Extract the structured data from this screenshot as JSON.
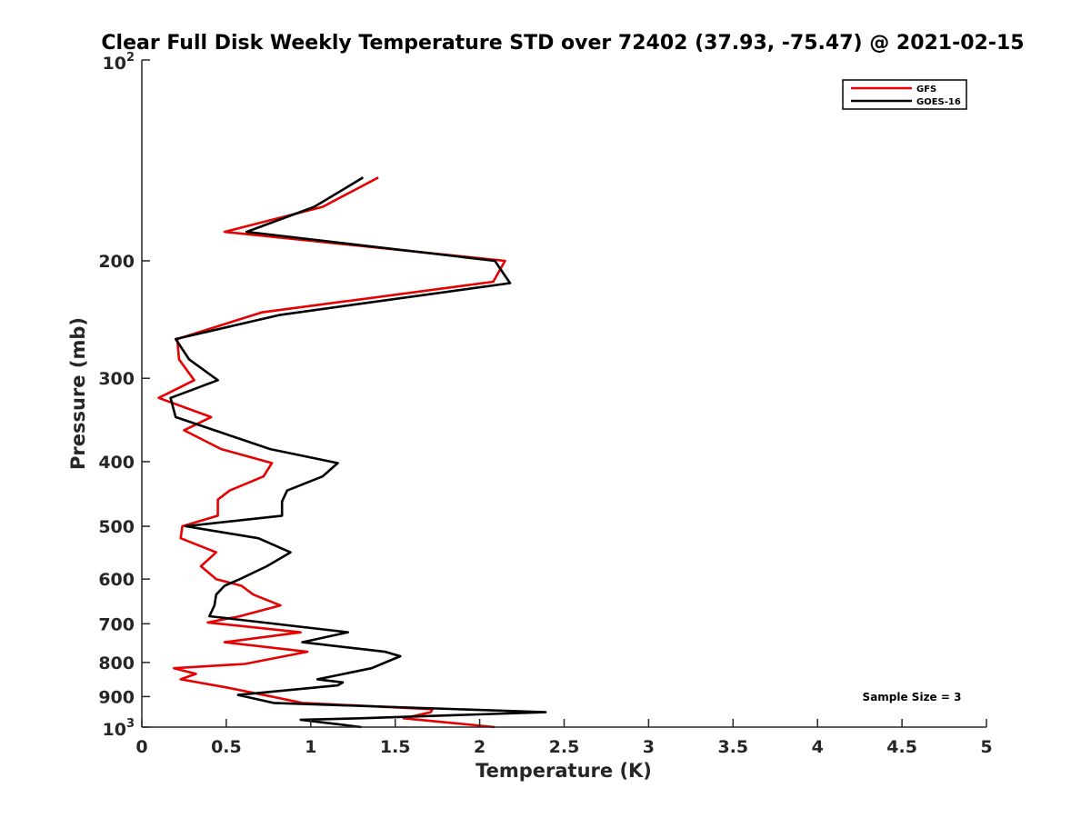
{
  "chart_data": {
    "type": "line",
    "title": "Clear Full Disk Weekly Temperature STD over 72402 (37.93, -75.47) @ 2021-02-15",
    "xlabel": "Temperature (K)",
    "ylabel": "Pressure (mb)",
    "xlim": [
      0,
      5
    ],
    "ylim": [
      100,
      1000
    ],
    "y_scale": "log",
    "y_reversed": true,
    "x_ticks": [
      "0",
      "0.5",
      "1",
      "1.5",
      "2",
      "2.5",
      "3",
      "3.5",
      "4",
      "4.5",
      "5"
    ],
    "x_tick_values": [
      0,
      0.5,
      1,
      1.5,
      2,
      2.5,
      3,
      3.5,
      4,
      4.5,
      5
    ],
    "y_ticks": [
      "200",
      "300",
      "400",
      "500",
      "600",
      "700",
      "800",
      "900"
    ],
    "y_tick_values": [
      200,
      300,
      400,
      500,
      600,
      700,
      800,
      900
    ],
    "y_top_label": {
      "base": "10",
      "exp": "2"
    },
    "y_bottom_label": {
      "base": "10",
      "exp": "3"
    },
    "grid": false,
    "legend_position": "top-right",
    "annotation": "Sample Size = 3",
    "series": [
      {
        "name": "GFS",
        "color": "#e60000",
        "points": [
          [
            1.4,
            150
          ],
          [
            1.07,
            166
          ],
          [
            0.49,
            181
          ],
          [
            2.15,
            200
          ],
          [
            2.08,
            215
          ],
          [
            0.71,
            239
          ],
          [
            0.21,
            262
          ],
          [
            0.22,
            281
          ],
          [
            0.31,
            302
          ],
          [
            0.1,
            321
          ],
          [
            0.41,
            343
          ],
          [
            0.25,
            359
          ],
          [
            0.47,
            383
          ],
          [
            0.77,
            402
          ],
          [
            0.72,
            421
          ],
          [
            0.52,
            442
          ],
          [
            0.45,
            456
          ],
          [
            0.45,
            482
          ],
          [
            0.24,
            500
          ],
          [
            0.23,
            521
          ],
          [
            0.44,
            547
          ],
          [
            0.35,
            574
          ],
          [
            0.44,
            600
          ],
          [
            0.59,
            614
          ],
          [
            0.66,
            633
          ],
          [
            0.82,
            657
          ],
          [
            0.58,
            682
          ],
          [
            0.39,
            697
          ],
          [
            0.94,
            721
          ],
          [
            0.49,
            746
          ],
          [
            0.98,
            771
          ],
          [
            0.61,
            804
          ],
          [
            0.19,
            816
          ],
          [
            0.32,
            832
          ],
          [
            0.23,
            848
          ],
          [
            0.5,
            872
          ],
          [
            0.75,
            898
          ],
          [
            0.95,
            920
          ],
          [
            1.72,
            940
          ],
          [
            1.71,
            950
          ],
          [
            1.55,
            970
          ],
          [
            2.09,
            1000
          ]
        ]
      },
      {
        "name": "GOES-16",
        "color": "#000000",
        "points": [
          [
            1.31,
            150
          ],
          [
            1.02,
            166
          ],
          [
            0.62,
            181
          ],
          [
            2.09,
            200
          ],
          [
            2.18,
            216
          ],
          [
            0.82,
            241
          ],
          [
            0.2,
            262
          ],
          [
            0.28,
            281
          ],
          [
            0.45,
            302
          ],
          [
            0.17,
            321
          ],
          [
            0.2,
            343
          ],
          [
            0.43,
            359
          ],
          [
            0.76,
            383
          ],
          [
            1.16,
            402
          ],
          [
            1.07,
            421
          ],
          [
            0.86,
            442
          ],
          [
            0.83,
            459
          ],
          [
            0.83,
            482
          ],
          [
            0.26,
            500
          ],
          [
            0.69,
            521
          ],
          [
            0.88,
            547
          ],
          [
            0.74,
            574
          ],
          [
            0.58,
            600
          ],
          [
            0.49,
            614
          ],
          [
            0.44,
            633
          ],
          [
            0.43,
            657
          ],
          [
            0.4,
            682
          ],
          [
            1.22,
            721
          ],
          [
            0.95,
            746
          ],
          [
            1.44,
            771
          ],
          [
            1.53,
            783
          ],
          [
            1.36,
            816
          ],
          [
            1.04,
            848
          ],
          [
            1.19,
            857
          ],
          [
            1.16,
            866
          ],
          [
            0.57,
            895
          ],
          [
            0.78,
            920
          ],
          [
            2.39,
            950
          ],
          [
            1.29,
            970
          ],
          [
            0.94,
            975
          ],
          [
            1.3,
            1000
          ]
        ]
      }
    ]
  }
}
